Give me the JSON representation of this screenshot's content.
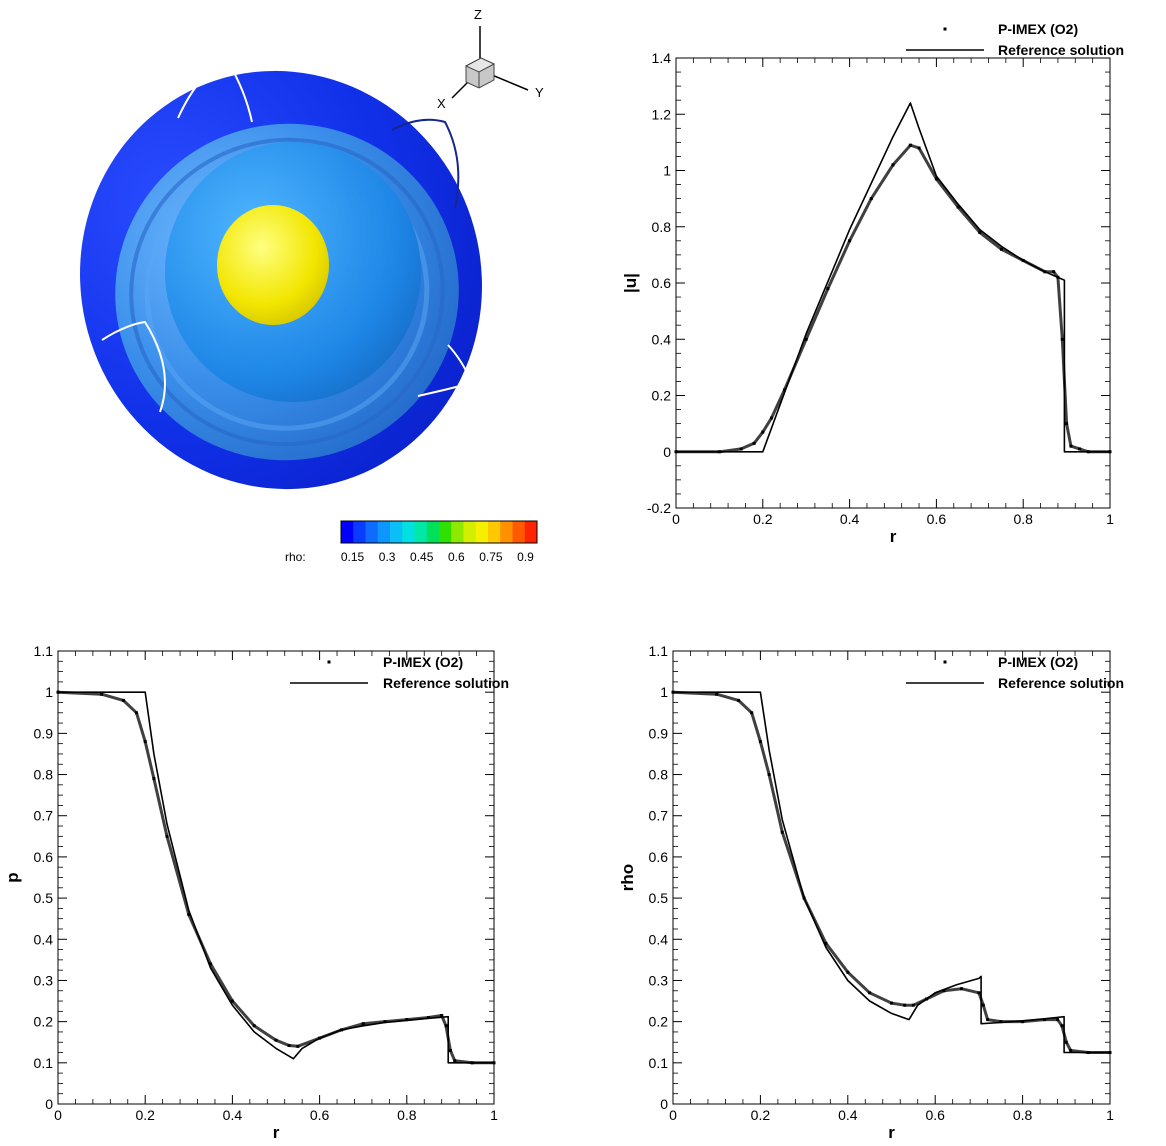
{
  "render3d": {
    "triad": {
      "z": "Z",
      "x": "X",
      "y": "Y"
    },
    "colorbar": {
      "label": "rho:",
      "tick_labels": [
        "0.15",
        "0.3",
        "0.45",
        "0.6",
        "0.75",
        "0.9"
      ],
      "tick_values": [
        0.15,
        0.3,
        0.45,
        0.6,
        0.75,
        0.9
      ],
      "range": [
        0.1,
        0.95
      ],
      "colors": [
        "#0000ff",
        "#0a3cff",
        "#0f6bff",
        "#0e96ff",
        "#0bbef5",
        "#00e0e0",
        "#00e8a8",
        "#00e05a",
        "#30e000",
        "#8ee800",
        "#d4ee00",
        "#f5f000",
        "#ffc800",
        "#ff9000",
        "#ff5a00",
        "#ff2400"
      ]
    }
  },
  "chart_data": [
    {
      "id": "velocity",
      "type": "line",
      "title": "",
      "xlabel": "r",
      "ylabel": "|u|",
      "xlim": [
        0,
        1
      ],
      "ylim": [
        -0.2,
        1.4
      ],
      "xticks": [
        0,
        0.2,
        0.4,
        0.6,
        0.8,
        1
      ],
      "xtick_labels": [
        "0",
        "0.2",
        "0.4",
        "0.6",
        "0.8",
        "1"
      ],
      "yticks": [
        -0.2,
        0,
        0.2,
        0.4,
        0.6,
        0.8,
        1,
        1.2,
        1.4
      ],
      "ytick_labels": [
        "-0.2",
        "0",
        "0.2",
        "0.4",
        "0.6",
        "0.8",
        "1",
        "1.2",
        "1.4"
      ],
      "legend": {
        "position": "top-right"
      },
      "series": [
        {
          "name": "P-IMEX (O2)",
          "style": "markers",
          "x": [
            0,
            0.1,
            0.15,
            0.18,
            0.2,
            0.22,
            0.25,
            0.3,
            0.35,
            0.4,
            0.45,
            0.5,
            0.54,
            0.56,
            0.6,
            0.65,
            0.7,
            0.75,
            0.8,
            0.85,
            0.87,
            0.88,
            0.89,
            0.9,
            0.91,
            0.93,
            0.95,
            1.0
          ],
          "y": [
            0,
            0,
            0.01,
            0.03,
            0.07,
            0.12,
            0.22,
            0.4,
            0.58,
            0.75,
            0.9,
            1.02,
            1.09,
            1.08,
            0.97,
            0.87,
            0.78,
            0.72,
            0.68,
            0.64,
            0.64,
            0.62,
            0.4,
            0.1,
            0.02,
            0.01,
            0,
            0
          ]
        },
        {
          "name": "Reference solution",
          "style": "line",
          "x": [
            0,
            0.2,
            0.3,
            0.4,
            0.5,
            0.54,
            0.56,
            0.6,
            0.65,
            0.7,
            0.75,
            0.8,
            0.85,
            0.88,
            0.895,
            0.895,
            1.0
          ],
          "y": [
            0,
            0,
            0.42,
            0.79,
            1.12,
            1.24,
            1.15,
            0.98,
            0.88,
            0.79,
            0.73,
            0.68,
            0.64,
            0.62,
            0.61,
            0,
            0
          ]
        }
      ]
    },
    {
      "id": "pressure",
      "type": "line",
      "title": "",
      "xlabel": "r",
      "ylabel": "p",
      "xlim": [
        0,
        1
      ],
      "ylim": [
        0,
        1.1
      ],
      "xticks": [
        0,
        0.2,
        0.4,
        0.6,
        0.8,
        1
      ],
      "xtick_labels": [
        "0",
        "0.2",
        "0.4",
        "0.6",
        "0.8",
        "1"
      ],
      "yticks": [
        0,
        0.1,
        0.2,
        0.3,
        0.4,
        0.5,
        0.6,
        0.7,
        0.8,
        0.9,
        1,
        1.1
      ],
      "ytick_labels": [
        "0",
        "0.1",
        "0.2",
        "0.3",
        "0.4",
        "0.5",
        "0.6",
        "0.7",
        "0.8",
        "0.9",
        "1",
        "1.1"
      ],
      "legend": {
        "position": "top-right"
      },
      "series": [
        {
          "name": "P-IMEX (O2)",
          "style": "markers",
          "x": [
            0,
            0.1,
            0.15,
            0.18,
            0.2,
            0.22,
            0.25,
            0.3,
            0.35,
            0.4,
            0.45,
            0.5,
            0.53,
            0.55,
            0.6,
            0.65,
            0.7,
            0.75,
            0.8,
            0.85,
            0.88,
            0.89,
            0.9,
            0.91,
            0.95,
            1.0
          ],
          "y": [
            1,
            0.995,
            0.98,
            0.95,
            0.88,
            0.79,
            0.65,
            0.46,
            0.34,
            0.25,
            0.19,
            0.155,
            0.142,
            0.14,
            0.16,
            0.18,
            0.195,
            0.2,
            0.205,
            0.21,
            0.215,
            0.19,
            0.13,
            0.105,
            0.1,
            0.1
          ]
        },
        {
          "name": "Reference solution",
          "style": "line",
          "x": [
            0,
            0.2,
            0.22,
            0.25,
            0.3,
            0.35,
            0.4,
            0.45,
            0.5,
            0.54,
            0.56,
            0.6,
            0.65,
            0.7,
            0.75,
            0.8,
            0.85,
            0.895,
            0.895,
            1.0
          ],
          "y": [
            1,
            1,
            0.85,
            0.68,
            0.47,
            0.33,
            0.24,
            0.175,
            0.135,
            0.11,
            0.135,
            0.16,
            0.18,
            0.19,
            0.198,
            0.203,
            0.208,
            0.212,
            0.1,
            0.1
          ]
        }
      ]
    },
    {
      "id": "density",
      "type": "line",
      "title": "",
      "xlabel": "r",
      "ylabel": "rho",
      "xlim": [
        0,
        1
      ],
      "ylim": [
        0,
        1.1
      ],
      "xticks": [
        0,
        0.2,
        0.4,
        0.6,
        0.8,
        1
      ],
      "xtick_labels": [
        "0",
        "0.2",
        "0.4",
        "0.6",
        "0.8",
        "1"
      ],
      "yticks": [
        0,
        0.1,
        0.2,
        0.3,
        0.4,
        0.5,
        0.6,
        0.7,
        0.8,
        0.9,
        1,
        1.1
      ],
      "ytick_labels": [
        "0",
        "0.1",
        "0.2",
        "0.3",
        "0.4",
        "0.5",
        "0.6",
        "0.7",
        "0.8",
        "0.9",
        "1",
        "1.1"
      ],
      "legend": {
        "position": "top-right"
      },
      "series": [
        {
          "name": "P-IMEX (O2)",
          "style": "markers",
          "x": [
            0,
            0.1,
            0.15,
            0.18,
            0.2,
            0.22,
            0.25,
            0.3,
            0.35,
            0.4,
            0.45,
            0.5,
            0.53,
            0.55,
            0.58,
            0.62,
            0.66,
            0.7,
            0.71,
            0.72,
            0.75,
            0.8,
            0.85,
            0.88,
            0.89,
            0.9,
            0.91,
            0.95,
            1.0
          ],
          "y": [
            1,
            0.995,
            0.98,
            0.95,
            0.88,
            0.8,
            0.66,
            0.5,
            0.39,
            0.32,
            0.27,
            0.245,
            0.24,
            0.24,
            0.255,
            0.275,
            0.28,
            0.27,
            0.24,
            0.205,
            0.2,
            0.2,
            0.205,
            0.205,
            0.19,
            0.15,
            0.13,
            0.125,
            0.125
          ]
        },
        {
          "name": "Reference solution",
          "style": "line",
          "x": [
            0,
            0.2,
            0.22,
            0.25,
            0.3,
            0.35,
            0.4,
            0.45,
            0.5,
            0.54,
            0.56,
            0.6,
            0.65,
            0.7,
            0.705,
            0.705,
            0.75,
            0.8,
            0.85,
            0.895,
            0.895,
            1.0
          ],
          "y": [
            1,
            1,
            0.86,
            0.69,
            0.5,
            0.38,
            0.3,
            0.25,
            0.22,
            0.205,
            0.24,
            0.27,
            0.29,
            0.305,
            0.31,
            0.195,
            0.198,
            0.202,
            0.207,
            0.212,
            0.125,
            0.125
          ]
        }
      ]
    }
  ]
}
